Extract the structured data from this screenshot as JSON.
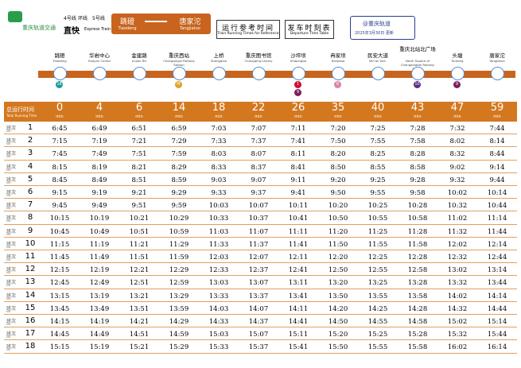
{
  "header": {
    "logo": "重庆轨道交通",
    "lines": [
      "4号线",
      "环线",
      "5号线"
    ],
    "service": "直快",
    "service_en": "Express Train",
    "from": "跳磴",
    "from_en": "Tiaodeng",
    "to": "唐家沱",
    "to_en": "Tangjiatuo",
    "ref_title": "运行参考时间",
    "ref_title_en": "Train Running Times for Reference",
    "timetable_title": "发车时刻表",
    "timetable_title_en": "Departure Time Table",
    "account": "@重庆轨道",
    "updated": "2025年3月30日 更新"
  },
  "stations": [
    {
      "name": "跳磴",
      "name_en": "Tiaodeng",
      "transfers": [
        {
          "line": "18",
          "color": "#1a9c9c"
        }
      ]
    },
    {
      "name": "华岩中心",
      "name_en": "Huayan Center",
      "transfers": []
    },
    {
      "name": "金建路",
      "name_en": "Jinjian Rd",
      "transfers": []
    },
    {
      "name": "重庆西站",
      "name_en": "Chongqingxi Railway Station",
      "transfers": [
        {
          "line": "环",
          "color": "#e2a020"
        }
      ]
    },
    {
      "name": "上桥",
      "name_en": "Shangqiao",
      "transfers": []
    },
    {
      "name": "重庆图书馆",
      "name_en": "Chongqing Library",
      "transfers": []
    },
    {
      "name": "沙坪坝",
      "name_en": "Shapingba",
      "transfers": [
        {
          "line": "1",
          "color": "#c8102e"
        },
        {
          "line": "9",
          "color": "#7a1f5c"
        }
      ]
    },
    {
      "name": "冉家坝",
      "name_en": "Ranjiaba",
      "transfers": [
        {
          "line": "6",
          "color": "#e47fa8"
        }
      ]
    },
    {
      "name": "民安大道",
      "name_en": "Min'an Ave.",
      "transfers": []
    },
    {
      "name": "重庆北站北广场",
      "name_en": "North Square of Chongqingbei Railway Station",
      "transfers": [
        {
          "line": "10",
          "color": "#5b2a86"
        }
      ]
    },
    {
      "name": "头塘",
      "name_en": "Toutang",
      "transfers": [
        {
          "line": "9",
          "color": "#7a1f5c"
        }
      ]
    },
    {
      "name": "唐家沱",
      "name_en": "Tangjiatuo",
      "transfers": []
    }
  ],
  "table": {
    "total_label": "总运行时间",
    "total_label_en": "Total Running Time",
    "minutes": [
      0,
      4,
      6,
      14,
      18,
      22,
      26,
      35,
      40,
      43,
      47,
      59
    ],
    "minute_unit": "min",
    "row_label": "班次",
    "row_label_en": "No.",
    "rows": [
      {
        "no": 1,
        "times": [
          "6:45",
          "6:49",
          "6:51",
          "6:59",
          "7:03",
          "7:07",
          "7:11",
          "7:20",
          "7:25",
          "7:28",
          "7:32",
          "7:44"
        ]
      },
      {
        "no": 2,
        "times": [
          "7:15",
          "7:19",
          "7:21",
          "7:29",
          "7:33",
          "7:37",
          "7:41",
          "7:50",
          "7:55",
          "7:58",
          "8:02",
          "8:14"
        ]
      },
      {
        "no": 3,
        "times": [
          "7:45",
          "7:49",
          "7:51",
          "7:59",
          "8:03",
          "8:07",
          "8:11",
          "8:20",
          "8:25",
          "8:28",
          "8:32",
          "8:44"
        ]
      },
      {
        "no": 4,
        "times": [
          "8:15",
          "8:19",
          "8:21",
          "8:29",
          "8:33",
          "8:37",
          "8:41",
          "8:50",
          "8:55",
          "8:58",
          "9:02",
          "9:14"
        ]
      },
      {
        "no": 5,
        "times": [
          "8:45",
          "8:49",
          "8:51",
          "8:59",
          "9:03",
          "9:07",
          "9:11",
          "9:20",
          "9:25",
          "9:28",
          "9:32",
          "9:44"
        ]
      },
      {
        "no": 6,
        "times": [
          "9:15",
          "9:19",
          "9:21",
          "9:29",
          "9:33",
          "9:37",
          "9:41",
          "9:50",
          "9:55",
          "9:58",
          "10:02",
          "10:14"
        ]
      },
      {
        "no": 7,
        "times": [
          "9:45",
          "9:49",
          "9:51",
          "9:59",
          "10:03",
          "10:07",
          "10:11",
          "10:20",
          "10:25",
          "10:28",
          "10:32",
          "10:44"
        ]
      },
      {
        "no": 8,
        "times": [
          "10:15",
          "10:19",
          "10:21",
          "10:29",
          "10:33",
          "10:37",
          "10:41",
          "10:50",
          "10:55",
          "10:58",
          "11:02",
          "11:14"
        ]
      },
      {
        "no": 9,
        "times": [
          "10:45",
          "10:49",
          "10:51",
          "10:59",
          "11:03",
          "11:07",
          "11:11",
          "11:20",
          "11:25",
          "11:28",
          "11:32",
          "11:44"
        ]
      },
      {
        "no": 10,
        "times": [
          "11:15",
          "11:19",
          "11:21",
          "11:29",
          "11:33",
          "11:37",
          "11:41",
          "11:50",
          "11:55",
          "11:58",
          "12:02",
          "12:14"
        ]
      },
      {
        "no": 11,
        "times": [
          "11:45",
          "11:49",
          "11:51",
          "11:59",
          "12:03",
          "12:07",
          "12:11",
          "12:20",
          "12:25",
          "12:28",
          "12:32",
          "12:44"
        ]
      },
      {
        "no": 12,
        "times": [
          "12:15",
          "12:19",
          "12:21",
          "12:29",
          "12:33",
          "12:37",
          "12:41",
          "12:50",
          "12:55",
          "12:58",
          "13:02",
          "13:14"
        ]
      },
      {
        "no": 13,
        "times": [
          "12:45",
          "12:49",
          "12:51",
          "12:59",
          "13:03",
          "13:07",
          "13:11",
          "13:20",
          "13:25",
          "13:28",
          "13:32",
          "13:44"
        ]
      },
      {
        "no": 14,
        "times": [
          "13:15",
          "13:19",
          "13:21",
          "13:29",
          "13:33",
          "13:37",
          "13:41",
          "13:50",
          "13:55",
          "13:58",
          "14:02",
          "14:14"
        ]
      },
      {
        "no": 15,
        "times": [
          "13:45",
          "13:49",
          "13:51",
          "13:59",
          "14:03",
          "14:07",
          "14:11",
          "14:20",
          "14:25",
          "14:28",
          "14:32",
          "14:44"
        ]
      },
      {
        "no": 16,
        "times": [
          "14:15",
          "14:19",
          "14:21",
          "14:29",
          "14:33",
          "14:37",
          "14:41",
          "14:50",
          "14:55",
          "14:58",
          "15:02",
          "15:14"
        ]
      },
      {
        "no": 17,
        "times": [
          "14:45",
          "14:49",
          "14:51",
          "14:59",
          "15:03",
          "15:07",
          "15:11",
          "15:20",
          "15:25",
          "15:28",
          "15:32",
          "15:44"
        ]
      },
      {
        "no": 18,
        "times": [
          "15:15",
          "15:19",
          "15:21",
          "15:29",
          "15:33",
          "15:37",
          "15:41",
          "15:50",
          "15:55",
          "15:58",
          "16:02",
          "16:14"
        ]
      }
    ]
  }
}
